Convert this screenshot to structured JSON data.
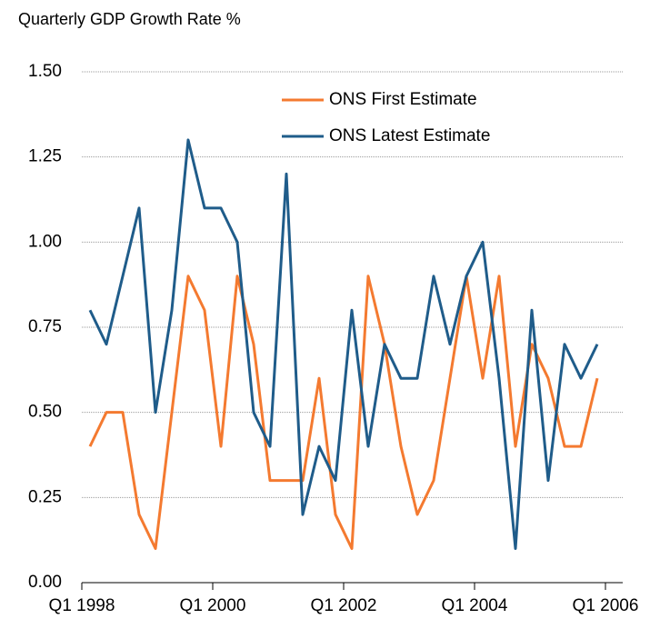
{
  "chart_data": {
    "type": "line",
    "title": "Quarterly GDP Growth Rate %",
    "x_labels": [
      "Q1 1998",
      "Q1 2000",
      "Q1 2002",
      "Q1 2004",
      "Q1 2006"
    ],
    "series": [
      {
        "name": "ONS First Estimate",
        "color": "#f47a30",
        "values": [
          0.4,
          0.5,
          0.5,
          0.2,
          0.1,
          0.5,
          0.9,
          0.8,
          0.4,
          0.9,
          0.7,
          0.3,
          0.3,
          0.3,
          0.6,
          0.2,
          0.1,
          0.9,
          0.7,
          0.4,
          0.2,
          0.3,
          0.6,
          0.9,
          0.6,
          0.9,
          0.4,
          0.7,
          0.6,
          0.4,
          0.4,
          0.6
        ]
      },
      {
        "name": "ONS Latest Estimate",
        "color": "#1f5c8a",
        "values": [
          0.8,
          0.7,
          0.9,
          1.1,
          0.5,
          0.8,
          1.3,
          1.1,
          1.1,
          1.0,
          0.5,
          0.4,
          1.2,
          0.2,
          0.4,
          0.3,
          0.8,
          0.4,
          0.7,
          0.6,
          0.6,
          0.9,
          0.7,
          0.9,
          1.0,
          0.6,
          0.1,
          0.8,
          0.3,
          0.7,
          0.6,
          0.7
        ]
      }
    ],
    "ylim": [
      0,
      1.5
    ],
    "yticks": [
      {
        "value": 0,
        "label": "0.00"
      },
      {
        "value": 0.25,
        "label": "0.25"
      },
      {
        "value": 0.5,
        "label": "0.50"
      },
      {
        "value": 0.75,
        "label": "0.75"
      },
      {
        "value": 1,
        "label": "1.00"
      },
      {
        "value": 1.25,
        "label": "1.25"
      },
      {
        "value": 1.5,
        "label": "1.50"
      }
    ],
    "grid": true
  }
}
